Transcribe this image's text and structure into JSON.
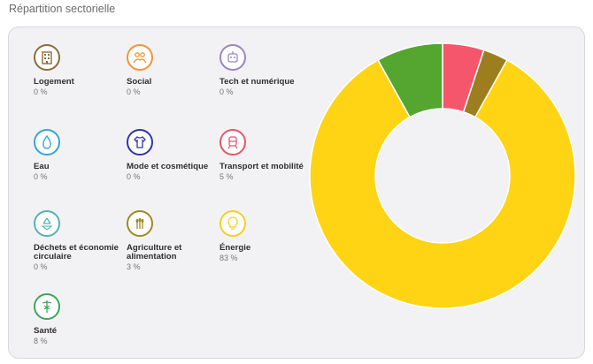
{
  "title": "Répartition sectorielle",
  "colors": {
    "logement": "#8a6d3b",
    "social": "#f0953a",
    "tech": "#9a86c0",
    "eau": "#3aa3d8",
    "mode": "#2f36a8",
    "transport": "#e8556a",
    "dechets": "#52b4ad",
    "agriculture": "#a08826",
    "energie": "#f6cf1f",
    "sante": "#3ea65a"
  },
  "chart_data": {
    "type": "pie",
    "variant": "donut",
    "start_angle_deg": 0,
    "slices": [
      {
        "label": "Transport et mobilité",
        "value": 5,
        "color": "#f5566b"
      },
      {
        "label": "Agriculture et alimentation",
        "value": 3,
        "color": "#9c7e1f"
      },
      {
        "label": "Énergie",
        "value": 83,
        "color": "#fed414"
      },
      {
        "label": "Santé",
        "value": 8,
        "color": "#55a630"
      }
    ]
  },
  "legend": [
    {
      "label": "Logement",
      "pct": "0 %",
      "icon": "building-icon",
      "color": "#8a6d3b"
    },
    {
      "label": "Social",
      "pct": "0 %",
      "icon": "people-icon",
      "color": "#f0953a"
    },
    {
      "label": "Tech et numérique",
      "pct": "0 %",
      "icon": "robot-icon",
      "color": "#9a86c0"
    },
    {
      "label": "Eau",
      "pct": "0 %",
      "icon": "water-drop-icon",
      "color": "#3aa3d8"
    },
    {
      "label": "Mode et cosmétique",
      "pct": "0 %",
      "icon": "clothing-icon",
      "color": "#2f36a8"
    },
    {
      "label": "Transport et mobilité",
      "pct": "5 %",
      "icon": "train-icon",
      "color": "#e8556a"
    },
    {
      "label": "Déchets et économie circulaire",
      "pct": "0 %",
      "icon": "recycle-icon",
      "color": "#52b4ad"
    },
    {
      "label": "Agriculture et alimentation",
      "pct": "3 %",
      "icon": "wheat-icon",
      "color": "#a08826"
    },
    {
      "label": "Énergie",
      "pct": "83 %",
      "icon": "lightbulb-icon",
      "color": "#f6cf1f"
    },
    {
      "label": "Santé",
      "pct": "8 %",
      "icon": "caduceus-icon",
      "color": "#3ea65a"
    }
  ]
}
